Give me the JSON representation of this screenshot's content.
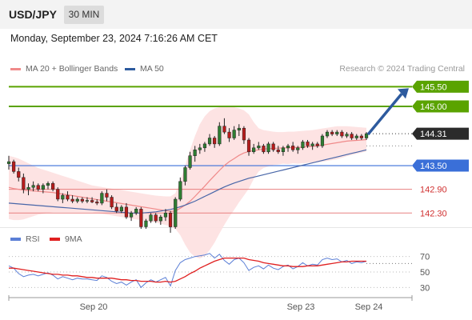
{
  "header": {
    "pair": "USD/JPY",
    "timeframe": "30 MIN"
  },
  "datetime": "Monday, September 23, 2024 7:16:26 AM CET",
  "legend": [
    {
      "label": "MA 20 + Bollinger Bands",
      "color": "#f08a8a"
    },
    {
      "label": "MA 50",
      "color": "#2d5a9e"
    }
  ],
  "rsi_legend": [
    {
      "label": "RSI",
      "color": "#5b7fd6"
    },
    {
      "label": "9MA",
      "color": "#e02020"
    }
  ],
  "research": "Research © 2024 Trading Central",
  "colors": {
    "up": "#2e7d32",
    "down": "#b71c1c",
    "target": "#5aa300",
    "support": "#e88080",
    "pivot": "#3a6fd8",
    "arrow": "#2d5a9e"
  },
  "chart_data": [
    {
      "type": "candlestick",
      "title": "USD/JPY 30 MIN",
      "y_axis_labels": [
        "145.50",
        "145.00",
        "144.31",
        "143.50",
        "142.90",
        "142.30"
      ],
      "ylim": [
        141.9,
        145.75
      ],
      "x_tick_labels": [
        "Sep 20",
        "Sep 23",
        "Sep 24"
      ],
      "levels": [
        {
          "label": "145.50",
          "value": 145.5,
          "kind": "target"
        },
        {
          "label": "145.00",
          "value": 145.0,
          "kind": "target"
        },
        {
          "label": "144.31",
          "value": 144.31,
          "kind": "last"
        },
        {
          "label": "143.50",
          "value": 143.5,
          "kind": "pivot"
        },
        {
          "label": "142.90",
          "value": 142.9,
          "kind": "support"
        },
        {
          "label": "142.30",
          "value": 142.3,
          "kind": "support"
        }
      ],
      "ohlc": [
        [
          143.55,
          143.75,
          143.4,
          143.6
        ],
        [
          143.6,
          143.65,
          143.3,
          143.35
        ],
        [
          143.35,
          143.45,
          143.1,
          143.2
        ],
        [
          143.2,
          143.3,
          142.8,
          142.9
        ],
        [
          142.9,
          143.05,
          142.75,
          142.95
        ],
        [
          142.95,
          143.1,
          142.85,
          143.0
        ],
        [
          143.0,
          143.05,
          142.85,
          142.9
        ],
        [
          142.9,
          143.05,
          142.8,
          143.0
        ],
        [
          143.0,
          143.1,
          142.9,
          143.05
        ],
        [
          143.05,
          143.1,
          142.85,
          142.9
        ],
        [
          142.9,
          142.95,
          142.6,
          142.65
        ],
        [
          142.65,
          142.8,
          142.55,
          142.75
        ],
        [
          142.75,
          142.85,
          142.6,
          142.65
        ],
        [
          142.65,
          142.75,
          142.55,
          142.6
        ],
        [
          142.6,
          142.7,
          142.55,
          142.65
        ],
        [
          142.65,
          142.7,
          142.55,
          142.6
        ],
        [
          142.6,
          142.7,
          142.55,
          142.62
        ],
        [
          142.62,
          142.7,
          142.55,
          142.58
        ],
        [
          142.58,
          142.65,
          142.5,
          142.55
        ],
        [
          142.55,
          142.85,
          142.5,
          142.8
        ],
        [
          142.8,
          142.9,
          142.6,
          142.7
        ],
        [
          142.7,
          142.75,
          142.4,
          142.45
        ],
        [
          142.45,
          142.55,
          142.3,
          142.35
        ],
        [
          142.35,
          142.5,
          142.3,
          142.45
        ],
        [
          142.45,
          142.55,
          142.15,
          142.2
        ],
        [
          142.2,
          142.35,
          142.1,
          142.3
        ],
        [
          142.3,
          142.45,
          142.25,
          142.4
        ],
        [
          142.4,
          142.45,
          141.9,
          141.95
        ],
        [
          141.95,
          142.15,
          141.9,
          142.1
        ],
        [
          142.1,
          142.3,
          142.05,
          142.25
        ],
        [
          142.25,
          142.3,
          142.05,
          142.1
        ],
        [
          142.1,
          142.25,
          142.0,
          142.2
        ],
        [
          142.2,
          142.4,
          142.1,
          142.3
        ],
        [
          142.3,
          142.35,
          141.8,
          141.95
        ],
        [
          141.95,
          142.7,
          141.9,
          142.65
        ],
        [
          142.65,
          143.2,
          142.6,
          143.1
        ],
        [
          143.1,
          143.5,
          143.0,
          143.45
        ],
        [
          143.45,
          143.85,
          143.4,
          143.75
        ],
        [
          143.75,
          144.0,
          143.6,
          143.9
        ],
        [
          143.9,
          144.05,
          143.8,
          143.95
        ],
        [
          143.95,
          144.1,
          143.85,
          144.05
        ],
        [
          144.05,
          144.3,
          144.0,
          144.2
        ],
        [
          144.2,
          144.25,
          143.95,
          144.05
        ],
        [
          144.05,
          144.6,
          144.0,
          144.5
        ],
        [
          144.5,
          144.7,
          144.3,
          144.35
        ],
        [
          144.35,
          144.45,
          144.1,
          144.2
        ],
        [
          144.2,
          144.5,
          144.15,
          144.4
        ],
        [
          144.4,
          144.55,
          144.25,
          144.45
        ],
        [
          144.45,
          144.5,
          144.05,
          144.15
        ],
        [
          144.15,
          144.2,
          143.75,
          143.85
        ],
        [
          143.85,
          144.05,
          143.8,
          143.95
        ],
        [
          143.95,
          144.1,
          143.9,
          144.0
        ],
        [
          144.0,
          144.05,
          143.8,
          143.85
        ],
        [
          143.85,
          144.1,
          143.8,
          144.05
        ],
        [
          144.05,
          144.1,
          143.85,
          143.9
        ],
        [
          143.9,
          144.0,
          143.8,
          143.85
        ],
        [
          143.85,
          144.0,
          143.75,
          143.95
        ],
        [
          143.95,
          144.05,
          143.85,
          144.0
        ],
        [
          144.0,
          144.1,
          143.85,
          143.9
        ],
        [
          143.9,
          144.0,
          143.8,
          143.95
        ],
        [
          143.95,
          144.15,
          143.9,
          144.1
        ],
        [
          144.1,
          144.15,
          143.95,
          144.0
        ],
        [
          144.0,
          144.1,
          143.9,
          144.05
        ],
        [
          144.05,
          144.1,
          143.95,
          144.0
        ],
        [
          144.0,
          144.3,
          143.95,
          144.25
        ],
        [
          144.25,
          144.4,
          144.2,
          144.35
        ],
        [
          144.35,
          144.4,
          144.25,
          144.3
        ],
        [
          144.3,
          144.4,
          144.25,
          144.35
        ],
        [
          144.35,
          144.4,
          144.2,
          144.25
        ],
        [
          144.25,
          144.35,
          144.2,
          144.3
        ],
        [
          144.3,
          144.35,
          144.15,
          144.2
        ],
        [
          144.2,
          144.3,
          144.15,
          144.25
        ],
        [
          144.25,
          144.3,
          144.15,
          144.2
        ],
        [
          144.2,
          144.35,
          144.15,
          144.31
        ]
      ],
      "ma20": [
        142.95,
        142.92,
        142.9,
        142.88,
        142.87,
        142.86,
        142.85,
        142.84,
        142.83,
        142.82,
        142.8,
        142.78,
        142.76,
        142.74,
        142.72,
        142.7,
        142.68,
        142.66,
        142.64,
        142.62,
        142.6,
        142.58,
        142.56,
        142.54,
        142.52,
        142.5,
        142.48,
        142.46,
        142.44,
        142.42,
        142.4,
        142.38,
        142.36,
        142.34,
        142.35,
        142.42,
        142.5,
        142.6,
        142.72,
        142.85,
        142.98,
        143.12,
        143.25,
        143.38,
        143.5,
        143.6,
        143.68,
        143.76,
        143.82,
        143.86,
        143.88,
        143.9,
        143.92,
        143.93,
        143.94,
        143.94,
        143.95,
        143.95,
        143.96,
        143.96,
        143.97,
        143.98,
        143.99,
        144.0,
        144.02,
        144.04,
        144.06,
        144.08,
        144.1,
        144.12,
        144.13,
        144.14,
        144.15,
        144.16
      ],
      "bb_upper": [
        143.75,
        143.72,
        143.68,
        143.62,
        143.56,
        143.5,
        143.44,
        143.4,
        143.36,
        143.32,
        143.28,
        143.24,
        143.2,
        143.16,
        143.12,
        143.08,
        143.04,
        143.0,
        142.98,
        142.96,
        142.94,
        142.92,
        142.9,
        142.88,
        142.86,
        142.84,
        142.82,
        142.8,
        142.78,
        142.76,
        142.74,
        142.73,
        142.72,
        142.72,
        142.8,
        143.1,
        143.5,
        143.9,
        144.25,
        144.55,
        144.75,
        144.88,
        144.95,
        144.98,
        145.0,
        145.0,
        144.98,
        144.95,
        144.9,
        144.8,
        144.6,
        144.45,
        144.4,
        144.38,
        144.36,
        144.35,
        144.35,
        144.36,
        144.36,
        144.37,
        144.38,
        144.39,
        144.4,
        144.42,
        144.44,
        144.46,
        144.48,
        144.5,
        144.5,
        144.5,
        144.49,
        144.48,
        144.47,
        144.46
      ],
      "bb_lower": [
        142.15,
        142.12,
        142.12,
        142.14,
        142.18,
        142.22,
        142.26,
        142.28,
        142.3,
        142.32,
        142.32,
        142.32,
        142.32,
        142.32,
        142.32,
        142.32,
        142.32,
        142.32,
        142.3,
        142.28,
        142.26,
        142.24,
        142.22,
        142.2,
        142.18,
        142.16,
        142.14,
        142.12,
        142.1,
        142.08,
        142.06,
        142.03,
        142.0,
        141.96,
        141.9,
        141.74,
        141.5,
        141.3,
        141.19,
        141.15,
        141.21,
        141.36,
        141.55,
        141.78,
        142.0,
        142.2,
        142.38,
        142.57,
        142.74,
        142.92,
        143.16,
        143.35,
        143.44,
        143.48,
        143.52,
        143.53,
        143.55,
        143.54,
        143.56,
        143.55,
        143.56,
        143.57,
        143.58,
        143.58,
        143.6,
        143.62,
        143.64,
        143.66,
        143.7,
        143.74,
        143.77,
        143.8,
        143.83,
        143.86
      ],
      "ma50": [
        142.55,
        142.54,
        142.53,
        142.52,
        142.51,
        142.5,
        142.49,
        142.48,
        142.47,
        142.46,
        142.45,
        142.44,
        142.43,
        142.42,
        142.41,
        142.4,
        142.39,
        142.38,
        142.37,
        142.36,
        142.35,
        142.34,
        142.33,
        142.32,
        142.31,
        142.3,
        142.3,
        142.3,
        142.31,
        142.32,
        142.33,
        142.35,
        142.37,
        142.39,
        142.42,
        142.46,
        142.5,
        142.55,
        142.6,
        142.66,
        142.72,
        142.78,
        142.84,
        142.9,
        142.96,
        143.01,
        143.06,
        143.1,
        143.14,
        143.18,
        143.21,
        143.24,
        143.27,
        143.3,
        143.33,
        143.36,
        143.39,
        143.42,
        143.45,
        143.48,
        143.51,
        143.54,
        143.57,
        143.6,
        143.63,
        143.66,
        143.69,
        143.72,
        143.75,
        143.78,
        143.81,
        143.84,
        143.87,
        143.9
      ],
      "forecast_arrow": {
        "from": 144.31,
        "to": 145.5
      }
    },
    {
      "type": "line",
      "title": "RSI",
      "y_axis_labels": [
        "70",
        "50",
        "30"
      ],
      "ylim": [
        20,
        80
      ],
      "series": [
        {
          "name": "RSI",
          "values": [
            58,
            55,
            48,
            44,
            46,
            47,
            45,
            47,
            49,
            46,
            41,
            44,
            42,
            40,
            42,
            41,
            41,
            40,
            39,
            45,
            43,
            38,
            35,
            37,
            33,
            37,
            40,
            30,
            36,
            40,
            37,
            40,
            43,
            32,
            52,
            62,
            66,
            68,
            70,
            71,
            72,
            74,
            68,
            73,
            65,
            60,
            66,
            68,
            62,
            52,
            56,
            58,
            54,
            59,
            55,
            53,
            57,
            59,
            54,
            57,
            62,
            58,
            60,
            59,
            66,
            68,
            66,
            67,
            63,
            65,
            61,
            63,
            62,
            64
          ]
        },
        {
          "name": "9MA",
          "values": [
            55,
            55,
            54,
            53,
            52,
            51,
            50,
            49,
            48,
            47,
            47,
            46,
            46,
            45,
            45,
            44,
            43,
            43,
            42,
            42,
            42,
            42,
            41,
            40,
            40,
            39,
            39,
            38,
            38,
            38,
            37,
            37,
            38,
            37,
            38,
            41,
            44,
            48,
            51,
            55,
            58,
            61,
            64,
            66,
            68,
            68,
            68,
            68,
            68,
            66,
            65,
            64,
            62,
            61,
            60,
            59,
            58,
            58,
            57,
            57,
            57,
            58,
            58,
            58,
            59,
            60,
            61,
            62,
            63,
            63,
            64,
            64,
            64,
            64
          ]
        }
      ]
    }
  ]
}
